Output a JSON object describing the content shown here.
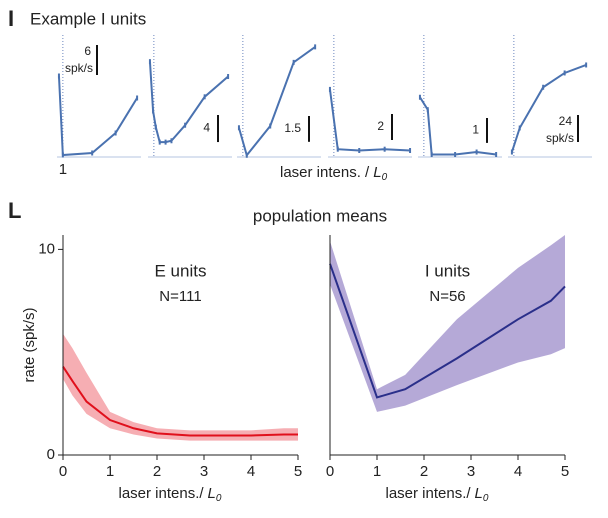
{
  "panels": [
    {
      "label": "I",
      "title": "Example I units",
      "x_label": "laser intens. /",
      "x_label_symbol": "L",
      "x_label_sub": "0"
    },
    {
      "label": "L",
      "title": "population means",
      "y_label": "rate (spk/s)"
    }
  ],
  "chart_data": [
    {
      "type": "line",
      "color": "#4a72b0",
      "x": [
        0.8,
        1.0,
        2.5,
        3.7,
        4.8
      ],
      "values": [
        16.2,
        0.4,
        0.8,
        4.8,
        11.8
      ],
      "xlim": [
        0.7,
        5
      ],
      "ylim": [
        0,
        23.4
      ],
      "ref_x": 1,
      "xticks": [
        1
      ],
      "scale_bar": 6,
      "scale_unit": "spk/s"
    },
    {
      "type": "line",
      "color": "#4a72b0",
      "x": [
        0.8,
        0.96,
        1.1,
        1.3,
        1.6,
        1.9,
        2.6,
        3.6,
        4.8
      ],
      "values": [
        14.1,
        6.8,
        4.4,
        2.2,
        2.2,
        2.4,
        4.7,
        8.9,
        11.9
      ],
      "xlim": [
        0.7,
        5
      ],
      "ylim": [
        0,
        17.3
      ],
      "ref_x": 1,
      "scale_bar": 4
    },
    {
      "type": "line",
      "color": "#4a72b0",
      "x": [
        0.8,
        1.2,
        2.4,
        3.6,
        4.7
      ],
      "values": [
        1.7,
        0.1,
        1.8,
        5.5,
        6.4
      ],
      "xlim": [
        0.7,
        5
      ],
      "ylim": [
        0,
        6.8
      ],
      "ref_x": 1,
      "scale_bar": 1.5
    },
    {
      "type": "line",
      "color": "#4a72b0",
      "x": [
        0.8,
        1.2,
        2.3,
        3.6,
        4.9
      ],
      "values": [
        5.2,
        0.6,
        0.5,
        0.6,
        0.5
      ],
      "xlim": [
        0.7,
        5
      ],
      "ylim": [
        0,
        9
      ],
      "ref_x": 1,
      "scale_bar": 2
    },
    {
      "type": "line",
      "color": "#4a72b0",
      "x": [
        0.8,
        1.2,
        1.4,
        2.6,
        3.7,
        4.7
      ],
      "values": [
        2.4,
        1.9,
        0.1,
        0.1,
        0.2,
        0.1
      ],
      "xlim": [
        0.7,
        5
      ],
      "ylim": [
        0,
        4.7
      ],
      "ref_x": 1,
      "scale_bar": 1
    },
    {
      "type": "line",
      "color": "#4a72b0",
      "x": [
        0.9,
        1.3,
        2.5,
        3.6,
        4.7
      ],
      "values": [
        4.4,
        25.8,
        62,
        74.7,
        81.8
      ],
      "xlim": [
        0.7,
        5
      ],
      "ylim": [
        0,
        104
      ],
      "ref_x": 1,
      "scale_bar": 24,
      "scale_unit": "spk/s"
    },
    {
      "type": "band",
      "title": "E units",
      "subtitle": "N=111",
      "color": "#e0101c",
      "band_color": "#f4a0a6",
      "x": [
        0,
        0.2,
        0.5,
        1,
        1.5,
        2,
        2.7,
        3.3,
        4,
        4.7,
        5
      ],
      "values": [
        4.3,
        3.6,
        2.6,
        1.7,
        1.3,
        1.05,
        0.95,
        0.95,
        0.95,
        1.0,
        1.0
      ],
      "lower": [
        3.7,
        2.9,
        2.0,
        1.3,
        1.0,
        0.8,
        0.7,
        0.7,
        0.7,
        0.7,
        0.7
      ],
      "upper": [
        5.9,
        5.2,
        4.0,
        2.1,
        1.6,
        1.3,
        1.2,
        1.2,
        1.2,
        1.3,
        1.3
      ],
      "xlim": [
        0,
        5
      ],
      "ylim": [
        0,
        10.7
      ],
      "xticks": [
        0,
        1,
        2,
        3,
        4,
        5
      ],
      "yticks": [
        0,
        10
      ],
      "x_label": "laser intens./",
      "x_label_symbol": "L",
      "x_label_sub": "0"
    },
    {
      "type": "band",
      "title": "I units",
      "subtitle": "N=56",
      "color": "#2a2f8a",
      "band_color": "#a89ad0",
      "x": [
        0,
        1,
        1.6,
        2.7,
        4,
        4.7,
        5
      ],
      "values": [
        9.3,
        2.8,
        3.2,
        4.7,
        6.6,
        7.5,
        8.2
      ],
      "lower": [
        8.3,
        2.1,
        2.4,
        3.4,
        4.5,
        4.9,
        5.2
      ],
      "upper": [
        10.4,
        3.2,
        3.9,
        6.6,
        9.1,
        10.2,
        10.7
      ],
      "xlim": [
        0,
        5
      ],
      "ylim": [
        0,
        10.7
      ],
      "xticks": [
        0,
        1,
        2,
        3,
        4,
        5
      ],
      "x_label": "laser intens./",
      "x_label_symbol": "L",
      "x_label_sub": "0"
    }
  ]
}
